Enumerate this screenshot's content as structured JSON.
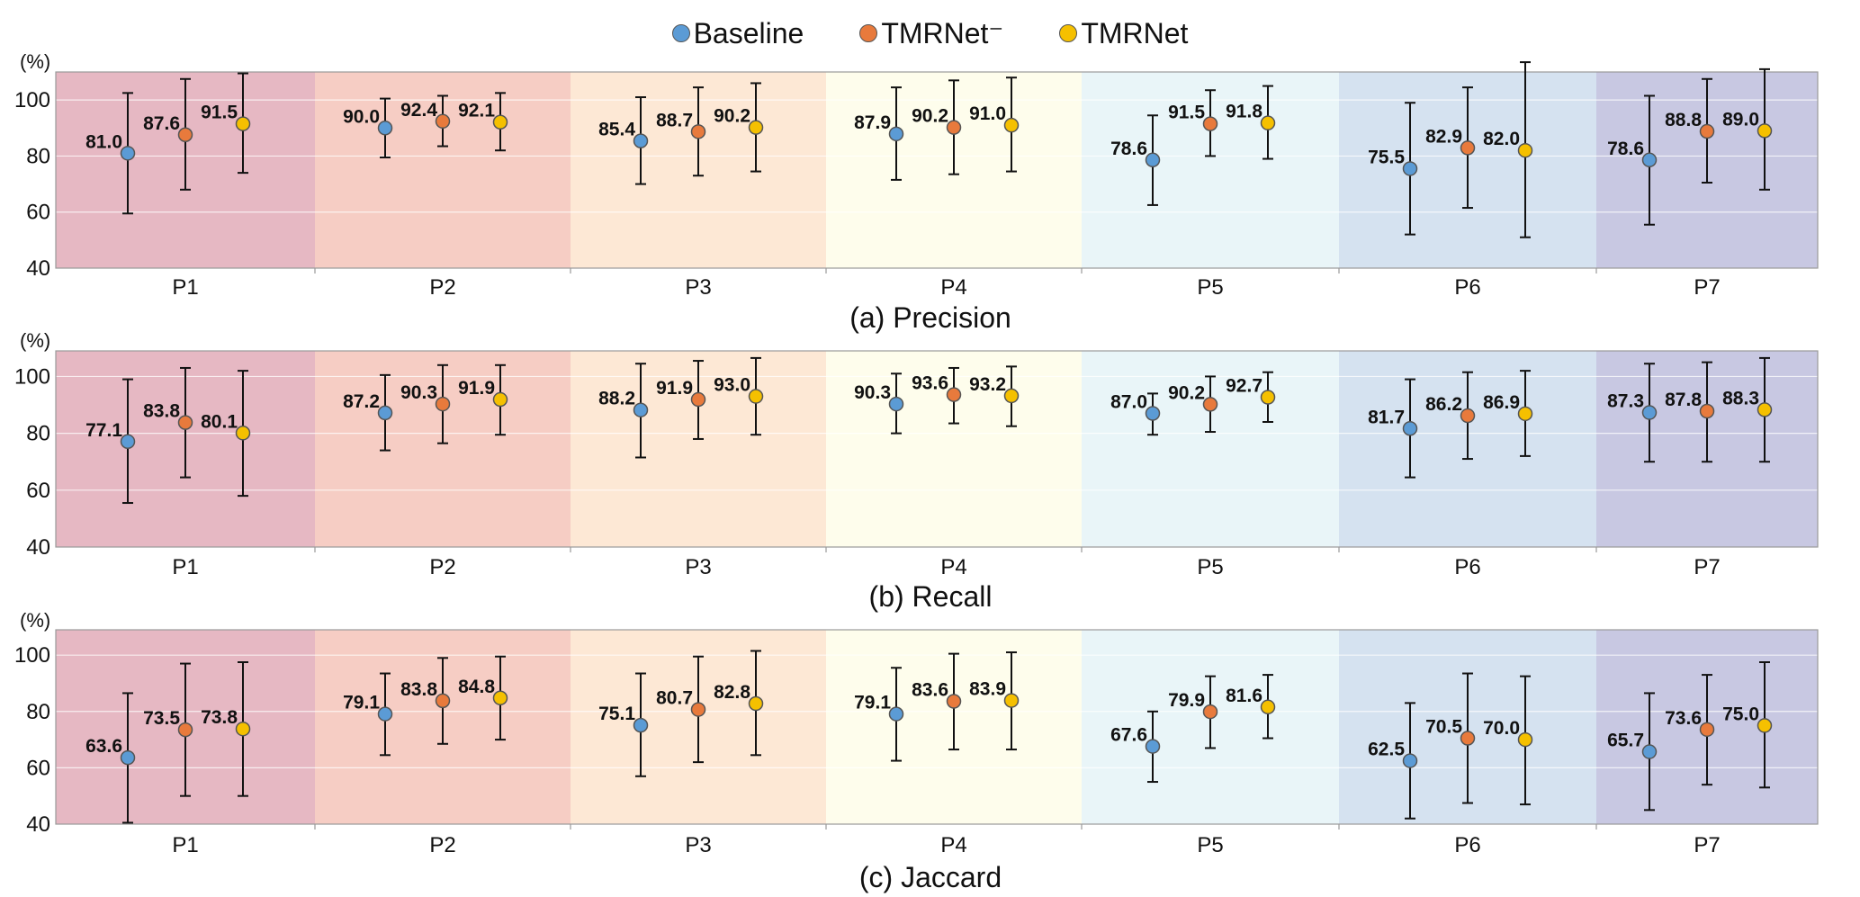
{
  "legend": [
    {
      "name": "Baseline",
      "color": "#5b9bd5"
    },
    {
      "name": "TMRNet⁻",
      "color": "#e87a3c"
    },
    {
      "name": "TMRNet",
      "color": "#f5c000"
    }
  ],
  "band_colors": [
    "#e6b8c3",
    "#f6cdc4",
    "#fde8d5",
    "#fefdec",
    "#e9f5f8",
    "#d5e2f0",
    "#c8c8e2"
  ],
  "chart_data": [
    {
      "type": "scatter",
      "title": "(a) Precision",
      "ylabel": "(%)",
      "ylim": [
        40,
        110
      ],
      "yticks": [
        "40",
        "60",
        "80",
        "100"
      ],
      "categories": [
        "P1",
        "P2",
        "P3",
        "P4",
        "P5",
        "P6",
        "P7"
      ],
      "series": [
        {
          "name": "Baseline",
          "values": [
            81.0,
            90.0,
            85.4,
            87.9,
            78.6,
            75.5,
            78.6
          ],
          "labels": [
            "81.0",
            "90.0",
            "85.4",
            "87.9",
            "78.6",
            "75.5",
            "78.6"
          ],
          "err_low": [
            59.5,
            79.5,
            70,
            71.5,
            62.5,
            52,
            55.5
          ],
          "err_high": [
            102.5,
            100.5,
            101,
            104.5,
            94.5,
            99,
            101.5
          ]
        },
        {
          "name": "TMRNet⁻",
          "values": [
            87.6,
            92.4,
            88.7,
            90.2,
            91.5,
            82.9,
            88.8
          ],
          "labels": [
            "87.6",
            "92.4",
            "88.7",
            "90.2",
            "91.5",
            "82.9",
            "88.8"
          ],
          "err_low": [
            68,
            83.5,
            73,
            73.5,
            80,
            61.5,
            70.5
          ],
          "err_high": [
            107.5,
            101.5,
            104.5,
            107,
            103.5,
            104.5,
            107.5
          ]
        },
        {
          "name": "TMRNet",
          "values": [
            91.5,
            92.1,
            90.2,
            91.0,
            91.8,
            82.0,
            89.0
          ],
          "labels": [
            "91.5",
            "92.1",
            "90.2",
            "91.0",
            "91.8",
            "82.0",
            "89.0"
          ],
          "err_low": [
            74,
            82,
            74.5,
            74.5,
            79,
            51,
            68
          ],
          "err_high": [
            109.5,
            102.5,
            106,
            108,
            105,
            113.5,
            111
          ]
        }
      ]
    },
    {
      "type": "scatter",
      "title": "(b) Recall",
      "ylabel": "(%)",
      "ylim": [
        40,
        109
      ],
      "yticks": [
        "40",
        "60",
        "80",
        "100"
      ],
      "categories": [
        "P1",
        "P2",
        "P3",
        "P4",
        "P5",
        "P6",
        "P7"
      ],
      "series": [
        {
          "name": "Baseline",
          "values": [
            77.1,
            87.2,
            88.2,
            90.3,
            87.0,
            81.7,
            87.3
          ],
          "labels": [
            "77.1",
            "87.2",
            "88.2",
            "90.3",
            "87.0",
            "81.7",
            "87.3"
          ],
          "err_low": [
            55.5,
            74,
            71.5,
            80,
            79.5,
            64.5,
            70
          ],
          "err_high": [
            99,
            100.5,
            104.5,
            101,
            94,
            99,
            104.5
          ]
        },
        {
          "name": "TMRNet⁻",
          "values": [
            83.8,
            90.3,
            91.9,
            93.6,
            90.2,
            86.2,
            87.8
          ],
          "labels": [
            "83.8",
            "90.3",
            "91.9",
            "93.6",
            "90.2",
            "86.2",
            "87.8"
          ],
          "err_low": [
            64.5,
            76.5,
            78,
            83.5,
            80.5,
            71,
            70
          ],
          "err_high": [
            103,
            104,
            105.5,
            103,
            100,
            101.5,
            105
          ]
        },
        {
          "name": "TMRNet",
          "values": [
            80.1,
            91.9,
            93.0,
            93.2,
            92.7,
            86.9,
            88.3
          ],
          "labels": [
            "80.1",
            "91.9",
            "93.0",
            "93.2",
            "92.7",
            "86.9",
            "88.3"
          ],
          "err_low": [
            58,
            79.5,
            79.5,
            82.5,
            84,
            72,
            70
          ],
          "err_high": [
            102,
            104,
            106.5,
            103.5,
            101.5,
            102,
            106.5
          ]
        }
      ]
    },
    {
      "type": "scatter",
      "title": "(c) Jaccard",
      "ylabel": "(%)",
      "ylim": [
        40,
        109
      ],
      "yticks": [
        "40",
        "60",
        "80",
        "100"
      ],
      "categories": [
        "P1",
        "P2",
        "P3",
        "P4",
        "P5",
        "P6",
        "P7"
      ],
      "series": [
        {
          "name": "Baseline",
          "values": [
            63.6,
            79.1,
            75.1,
            79.1,
            67.6,
            62.5,
            65.7
          ],
          "labels": [
            "63.6",
            "79.1",
            "75.1",
            "79.1",
            "67.6",
            "62.5",
            "65.7"
          ],
          "err_low": [
            40.5,
            64.5,
            57,
            62.5,
            55,
            42,
            45
          ],
          "err_high": [
            86.5,
            93.5,
            93.5,
            95.5,
            80,
            83,
            86.5
          ]
        },
        {
          "name": "TMRNet⁻",
          "values": [
            73.5,
            83.8,
            80.7,
            83.6,
            79.9,
            70.5,
            73.6
          ],
          "labels": [
            "73.5",
            "83.8",
            "80.7",
            "83.6",
            "79.9",
            "70.5",
            "73.6"
          ],
          "err_low": [
            50,
            68.5,
            62,
            66.5,
            67,
            47.5,
            54
          ],
          "err_high": [
            97,
            99,
            99.5,
            100.5,
            92.5,
            93.5,
            93
          ]
        },
        {
          "name": "TMRNet",
          "values": [
            73.8,
            84.8,
            82.8,
            83.9,
            81.6,
            70.0,
            75.0
          ],
          "labels": [
            "73.8",
            "84.8",
            "82.8",
            "83.9",
            "81.6",
            "70.0",
            "75.0"
          ],
          "err_low": [
            50,
            70,
            64.5,
            66.5,
            70.5,
            47,
            53
          ],
          "err_high": [
            97.5,
            99.5,
            101.5,
            101,
            93,
            92.5,
            97.5
          ]
        }
      ]
    }
  ]
}
